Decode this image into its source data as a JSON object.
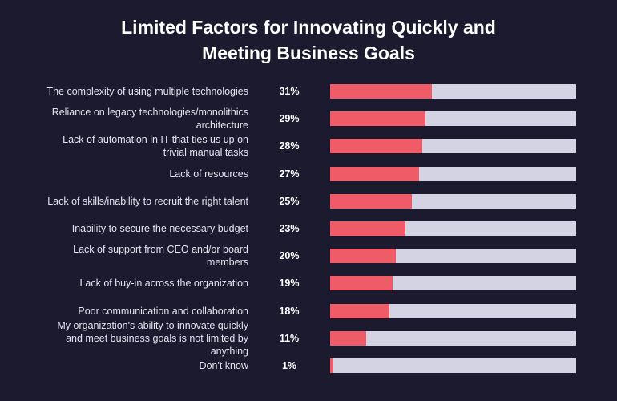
{
  "chart_data": {
    "type": "barh",
    "title": "Limited Factors for Innovating Quickly and Meeting Business Goals",
    "categories": [
      "The complexity of using multiple technologies",
      "Reliance on legacy technologies/monolithics architecture",
      "Lack of automation in IT that ties us up on trivial manual tasks",
      "Lack of resources",
      "Lack of skills/inability to recruit the right talent",
      "Inability to secure the necessary budget",
      "Lack of support from CEO and/or board members",
      "Lack of buy-in across the organization",
      "Poor communication and collaboration",
      "My organization's ability to innovate quickly and meet business goals is not limited by anything",
      "Don't know"
    ],
    "values": [
      31,
      29,
      28,
      27,
      25,
      23,
      20,
      19,
      18,
      11,
      1
    ],
    "value_labels": [
      "31%",
      "29%",
      "28%",
      "27%",
      "25%",
      "23%",
      "20%",
      "19%",
      "18%",
      "11%",
      "1%"
    ],
    "xlim": [
      0,
      75
    ],
    "color": "#ef5b67",
    "track_color": "#d4d3e3"
  }
}
